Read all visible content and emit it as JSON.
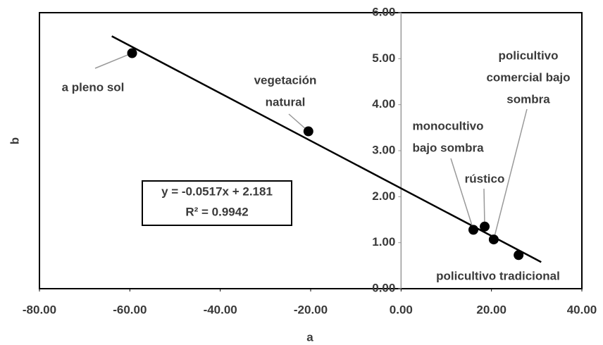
{
  "chart_data": {
    "type": "scatter",
    "x_label": "a",
    "y_label": "b",
    "x": [
      -59.5,
      -20.5,
      16,
      18.5,
      20.5,
      26
    ],
    "values": [
      5.12,
      3.42,
      1.28,
      1.35,
      1.07,
      0.73
    ],
    "color": "#000000",
    "point_labels": [
      [
        "a pleno sol"
      ],
      [
        "vegetación",
        "natural"
      ],
      [
        "monocultivo",
        "bajo sombra"
      ],
      [
        "rústico"
      ],
      [
        "policultivo",
        "comercial bajo",
        "sombra"
      ],
      [
        "policultivo tradicional"
      ]
    ],
    "trendline": {
      "equation": "y = -0.0517x + 2.181",
      "r_squared": "R² = 0.9942",
      "slope": -0.0517,
      "intercept": 2.181,
      "x_range": [
        -64,
        31
      ]
    },
    "xlim": [
      -80,
      40
    ],
    "ylim": [
      0,
      6
    ],
    "xticks": [
      {
        "value": -80,
        "label": "-80.00"
      },
      {
        "value": -60,
        "label": "-60.00"
      },
      {
        "value": -40,
        "label": "-40.00"
      },
      {
        "value": -20,
        "label": "-20.00"
      },
      {
        "value": 0,
        "label": "0.00"
      },
      {
        "value": 20,
        "label": "20.00"
      },
      {
        "value": 40,
        "label": "40.00"
      }
    ],
    "yticks": [
      {
        "value": 0,
        "label": "0.00"
      },
      {
        "value": 1,
        "label": "1.00"
      },
      {
        "value": 2,
        "label": "2.00"
      },
      {
        "value": 3,
        "label": "3.00"
      },
      {
        "value": 4,
        "label": "4.00"
      },
      {
        "value": 5,
        "label": "5.00"
      },
      {
        "value": 6,
        "label": "6.00"
      }
    ]
  }
}
